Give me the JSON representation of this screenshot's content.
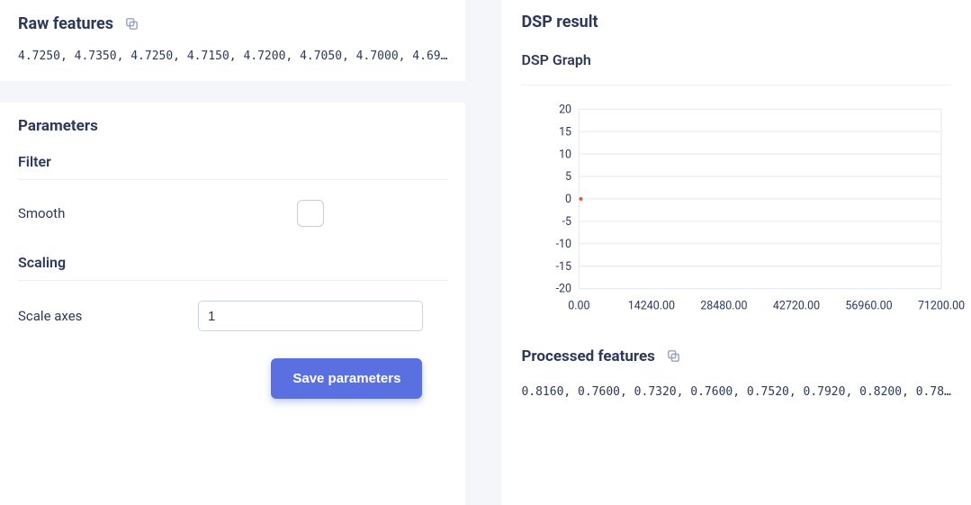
{
  "raw_features": {
    "title": "Raw features",
    "values_text": "4.7250, 4.7350, 4.7250, 4.7150, 4.7200, 4.7050, 4.7000, 4.69…"
  },
  "parameters": {
    "title": "Parameters",
    "filter": {
      "title": "Filter",
      "smooth_label": "Smooth",
      "smooth_checked": false
    },
    "scaling": {
      "title": "Scaling",
      "scale_axes_label": "Scale axes",
      "scale_axes_value": "1"
    },
    "save_button_label": "Save parameters"
  },
  "dsp": {
    "title": "DSP result",
    "graph_title": "DSP Graph",
    "chart": {
      "type": "line",
      "ylim": [
        -20,
        20
      ],
      "ytick_step": 5,
      "yticks": [
        20,
        15,
        10,
        5,
        0,
        -5,
        -10,
        -15,
        -20
      ],
      "xlim": [
        0,
        71200
      ],
      "xticks": [
        "0.00",
        "14240.00",
        "28480.00",
        "42720.00",
        "56960.00",
        "71200.00"
      ],
      "background_color": "#ffffff",
      "grid_color": "#e6e8f0",
      "axis_label_color": "#2d3958",
      "axis_label_fontsize": 12,
      "series_color": "#e25b3c",
      "data_points": [
        {
          "x": 0,
          "y": 0
        }
      ],
      "point_radius": 2
    },
    "processed": {
      "title": "Processed features",
      "values_text": "0.8160, 0.7600, 0.7320, 0.7600, 0.7520, 0.7920, 0.8200, 0.78…"
    }
  }
}
